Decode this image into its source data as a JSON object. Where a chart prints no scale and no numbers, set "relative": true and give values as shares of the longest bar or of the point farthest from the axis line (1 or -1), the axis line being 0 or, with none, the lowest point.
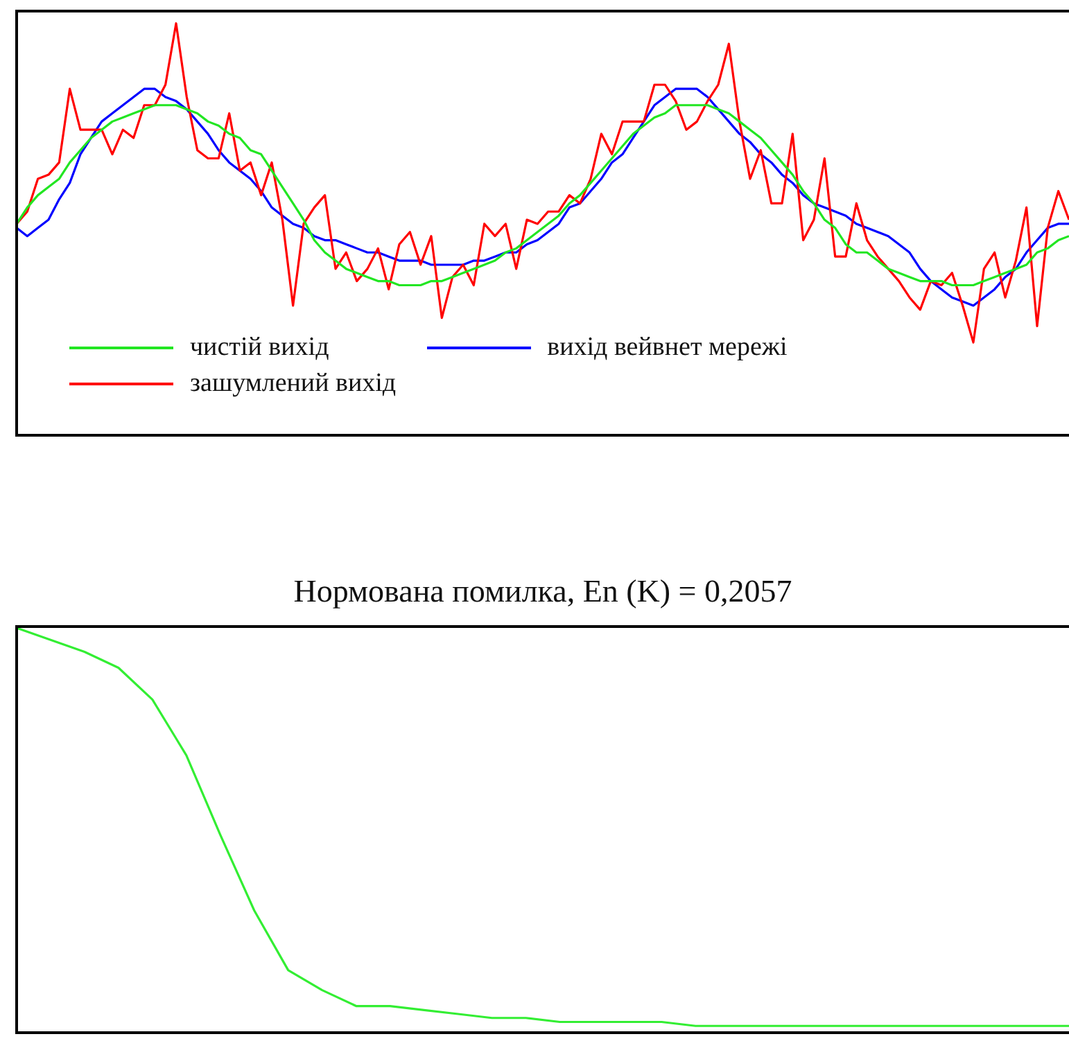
{
  "chart_data": [
    {
      "type": "line",
      "relative": true,
      "grid": false,
      "tick_labels": false,
      "legend": "bottom left",
      "categories": [
        null,
        null,
        null,
        null,
        null,
        null,
        null,
        null,
        null,
        null,
        null,
        null,
        null,
        null,
        null,
        null,
        null,
        null,
        null,
        null,
        null,
        null,
        null,
        null,
        null,
        null,
        null,
        null,
        null,
        null,
        null,
        null,
        null,
        null,
        null,
        null,
        null,
        null,
        null,
        null,
        null,
        null,
        null,
        null,
        null,
        null,
        null,
        null,
        null,
        null,
        null,
        null,
        null,
        null,
        null,
        null,
        null,
        null,
        null,
        null,
        null,
        null,
        null,
        null,
        null,
        null,
        null,
        null,
        null,
        null,
        null,
        null,
        null,
        null,
        null,
        null,
        null,
        null,
        null,
        null,
        null,
        null,
        null,
        null,
        null,
        null,
        null,
        null,
        null,
        null,
        null,
        null,
        null,
        null,
        null,
        null,
        null,
        null,
        null,
        null
      ],
      "series": [
        {
          "name": "чистій вихід",
          "color": "#22e622",
          "values": [
            0.51,
            0.55,
            0.58,
            0.6,
            0.62,
            0.66,
            0.69,
            0.72,
            0.74,
            0.76,
            0.77,
            0.78,
            0.79,
            0.8,
            0.8,
            0.8,
            0.79,
            0.78,
            0.76,
            0.75,
            0.73,
            0.72,
            0.69,
            0.68,
            0.64,
            0.6,
            0.56,
            0.52,
            0.47,
            0.44,
            0.42,
            0.4,
            0.39,
            0.38,
            0.37,
            0.37,
            0.36,
            0.36,
            0.36,
            0.37,
            0.37,
            0.38,
            0.39,
            0.4,
            0.41,
            0.42,
            0.44,
            0.45,
            0.47,
            0.49,
            0.51,
            0.53,
            0.56,
            0.58,
            0.61,
            0.64,
            0.67,
            0.7,
            0.73,
            0.75,
            0.77,
            0.78,
            0.8,
            0.8,
            0.8,
            0.8,
            0.79,
            0.78,
            0.76,
            0.74,
            0.72,
            0.69,
            0.66,
            0.63,
            0.59,
            0.56,
            0.52,
            0.5,
            0.46,
            0.44,
            0.44,
            0.42,
            0.4,
            0.39,
            0.38,
            0.37,
            0.37,
            0.37,
            0.36,
            0.36,
            0.36,
            0.37,
            0.38,
            0.39,
            0.4,
            0.41,
            0.44,
            0.45,
            0.47,
            0.48
          ]
        },
        {
          "name": "зашумлений вихід",
          "color": "#ff0000",
          "values": [
            0.51,
            0.54,
            0.62,
            0.63,
            0.66,
            0.84,
            0.74,
            0.74,
            0.74,
            0.68,
            0.74,
            0.72,
            0.8,
            0.8,
            0.85,
            1,
            0.82,
            0.69,
            0.67,
            0.67,
            0.78,
            0.64,
            0.66,
            0.58,
            0.66,
            0.52,
            0.31,
            0.51,
            0.55,
            0.58,
            0.4,
            0.44,
            0.37,
            0.4,
            0.45,
            0.35,
            0.46,
            0.49,
            0.41,
            0.48,
            0.28,
            0.38,
            0.41,
            0.36,
            0.51,
            0.48,
            0.51,
            0.4,
            0.52,
            0.51,
            0.54,
            0.54,
            0.58,
            0.56,
            0.62,
            0.73,
            0.68,
            0.76,
            0.76,
            0.76,
            0.85,
            0.85,
            0.81,
            0.74,
            0.76,
            0.81,
            0.85,
            0.95,
            0.76,
            0.62,
            0.69,
            0.56,
            0.56,
            0.73,
            0.47,
            0.52,
            0.67,
            0.43,
            0.43,
            0.56,
            0.47,
            0.43,
            0.4,
            0.37,
            0.33,
            0.3,
            0.37,
            0.36,
            0.39,
            0.31,
            0.22,
            0.4,
            0.44,
            0.33,
            0.42,
            0.55,
            0.26,
            0.5,
            0.59,
            0.52
          ]
        },
        {
          "name": "вихід вейвнет мережі",
          "color": "#0000ff",
          "values": [
            0.5,
            0.48,
            0.5,
            0.52,
            0.57,
            0.61,
            0.68,
            0.72,
            0.76,
            0.78,
            0.8,
            0.82,
            0.84,
            0.84,
            0.82,
            0.81,
            0.79,
            0.76,
            0.73,
            0.69,
            0.66,
            0.64,
            0.62,
            0.59,
            0.55,
            0.53,
            0.51,
            0.5,
            0.48,
            0.47,
            0.47,
            0.46,
            0.45,
            0.44,
            0.44,
            0.43,
            0.42,
            0.42,
            0.42,
            0.41,
            0.41,
            0.41,
            0.41,
            0.42,
            0.42,
            0.43,
            0.44,
            0.44,
            0.46,
            0.47,
            0.49,
            0.51,
            0.55,
            0.56,
            0.59,
            0.62,
            0.66,
            0.68,
            0.72,
            0.76,
            0.8,
            0.82,
            0.84,
            0.84,
            0.84,
            0.82,
            0.79,
            0.76,
            0.73,
            0.71,
            0.68,
            0.66,
            0.63,
            0.61,
            0.58,
            0.56,
            0.55,
            0.54,
            0.53,
            0.51,
            0.5,
            0.49,
            0.48,
            0.46,
            0.44,
            0.4,
            0.37,
            0.35,
            0.33,
            0.32,
            0.31,
            0.33,
            0.35,
            0.38,
            0.4,
            0.44,
            0.47,
            0.5,
            0.51,
            0.51
          ]
        }
      ]
    },
    {
      "type": "line",
      "relative": true,
      "grid": false,
      "tick_labels": false,
      "title": "Нормована помилка, En (K) = 0,2057",
      "color": "#33ee33",
      "categories": [
        null,
        null,
        null,
        null,
        null,
        null,
        null,
        null,
        null,
        null,
        null,
        null,
        null,
        null,
        null,
        null,
        null,
        null,
        null,
        null,
        null,
        null,
        null,
        null,
        null,
        null,
        null,
        null,
        null,
        null,
        null,
        null
      ],
      "values": [
        1,
        0.97,
        0.94,
        0.9,
        0.82,
        0.68,
        0.48,
        0.29,
        0.14,
        0.09,
        0.05,
        0.05,
        0.04,
        0.03,
        0.02,
        0.02,
        0.01,
        0.01,
        0.01,
        0.01,
        0,
        0,
        0,
        0,
        0,
        0,
        0,
        0,
        0,
        0,
        0,
        0
      ]
    }
  ]
}
